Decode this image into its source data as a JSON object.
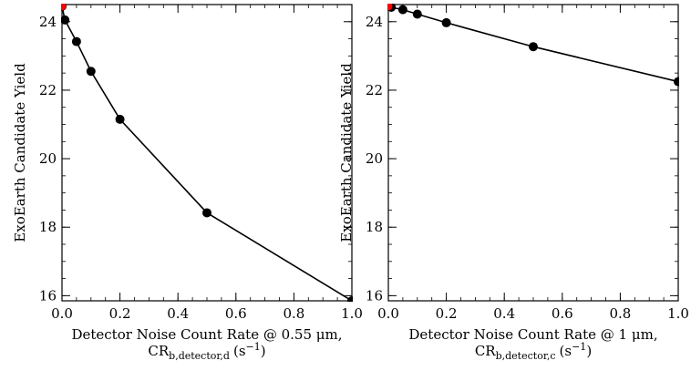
{
  "chart_data": [
    {
      "type": "line",
      "title": "",
      "xlabel_line1": "Detector Noise Count Rate @ 0.55 μm,",
      "xlabel_line2_main": "CR",
      "xlabel_line2_sub": "b,detector,d",
      "xlabel_line2_unit": "(s",
      "xlabel_line2_exp": "−1",
      "xlabel_line2_close": ")",
      "ylabel": "ExoEarth Candidate Yield",
      "xlim": [
        0.0,
        1.0
      ],
      "ylim": [
        15.85,
        24.5
      ],
      "xticks": [
        0.0,
        0.2,
        0.4,
        0.6,
        0.8,
        1.0
      ],
      "xtick_labels": [
        "0.0",
        "0.2",
        "0.4",
        "0.6",
        "0.8",
        "1.0"
      ],
      "yticks": [
        16,
        18,
        20,
        22,
        24
      ],
      "ytick_labels": [
        "16",
        "18",
        "20",
        "22",
        "24"
      ],
      "series": [
        {
          "x": [
            0.0,
            0.01,
            0.05,
            0.1,
            0.2,
            0.5,
            1.0
          ],
          "y": [
            24.45,
            24.05,
            23.42,
            22.55,
            21.15,
            18.42,
            15.85
          ]
        }
      ],
      "highlight": {
        "x": 0.0,
        "y": 24.45,
        "color": "#ff0000"
      },
      "line_color": "#000000"
    },
    {
      "type": "line",
      "title": "",
      "xlabel_line1": "Detector Noise Count Rate @ 1 μm,",
      "xlabel_line2_main": "CR",
      "xlabel_line2_sub": "b,detector,c",
      "xlabel_line2_unit": "(s",
      "xlabel_line2_exp": "−1",
      "xlabel_line2_close": ")",
      "ylabel": "ExoEarth Candidate Yield",
      "xlim": [
        0.0,
        1.0
      ],
      "ylim": [
        15.85,
        24.5
      ],
      "xticks": [
        0.0,
        0.2,
        0.4,
        0.6,
        0.8,
        1.0
      ],
      "xtick_labels": [
        "0.0",
        "0.2",
        "0.4",
        "0.6",
        "0.8",
        "1.0"
      ],
      "yticks": [
        16,
        18,
        20,
        22,
        24
      ],
      "ytick_labels": [
        "16",
        "18",
        "20",
        "22",
        "24"
      ],
      "series": [
        {
          "x": [
            0.0,
            0.01,
            0.05,
            0.1,
            0.2,
            0.5,
            1.0
          ],
          "y": [
            24.45,
            24.42,
            24.35,
            24.22,
            23.97,
            23.27,
            22.25
          ]
        }
      ],
      "highlight": {
        "x": 0.0,
        "y": 24.45,
        "color": "#ff0000"
      },
      "line_color": "#000000"
    }
  ]
}
